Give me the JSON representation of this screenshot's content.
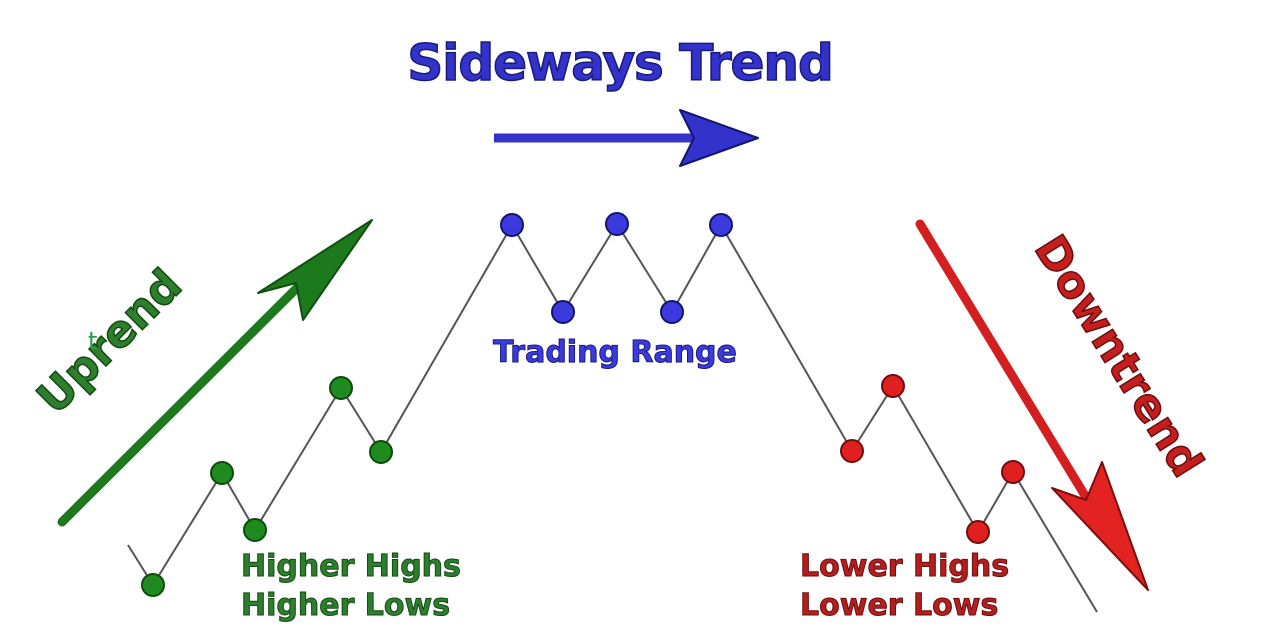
{
  "title": "Sideways Trend",
  "uptrend_label": "Uprend",
  "stray_letter": "t",
  "downtrend_label": "Downtrend",
  "trading_range_label": "Trading Range",
  "uptrend_lines": [
    "Higher Highs",
    "Higher Lows"
  ],
  "downtrend_lines": [
    "Lower Highs",
    "Lower Lows"
  ],
  "colors": {
    "uptrend": "#1c7a1c",
    "uptrend_text": "#2f7d2f",
    "sideways": "#3333cc",
    "sideways_dot": "#3a3adf",
    "downtrend": "#d31f1f",
    "downtrend_text": "#b41e1e",
    "line": "#555555",
    "stray": "#2aa04a"
  }
}
